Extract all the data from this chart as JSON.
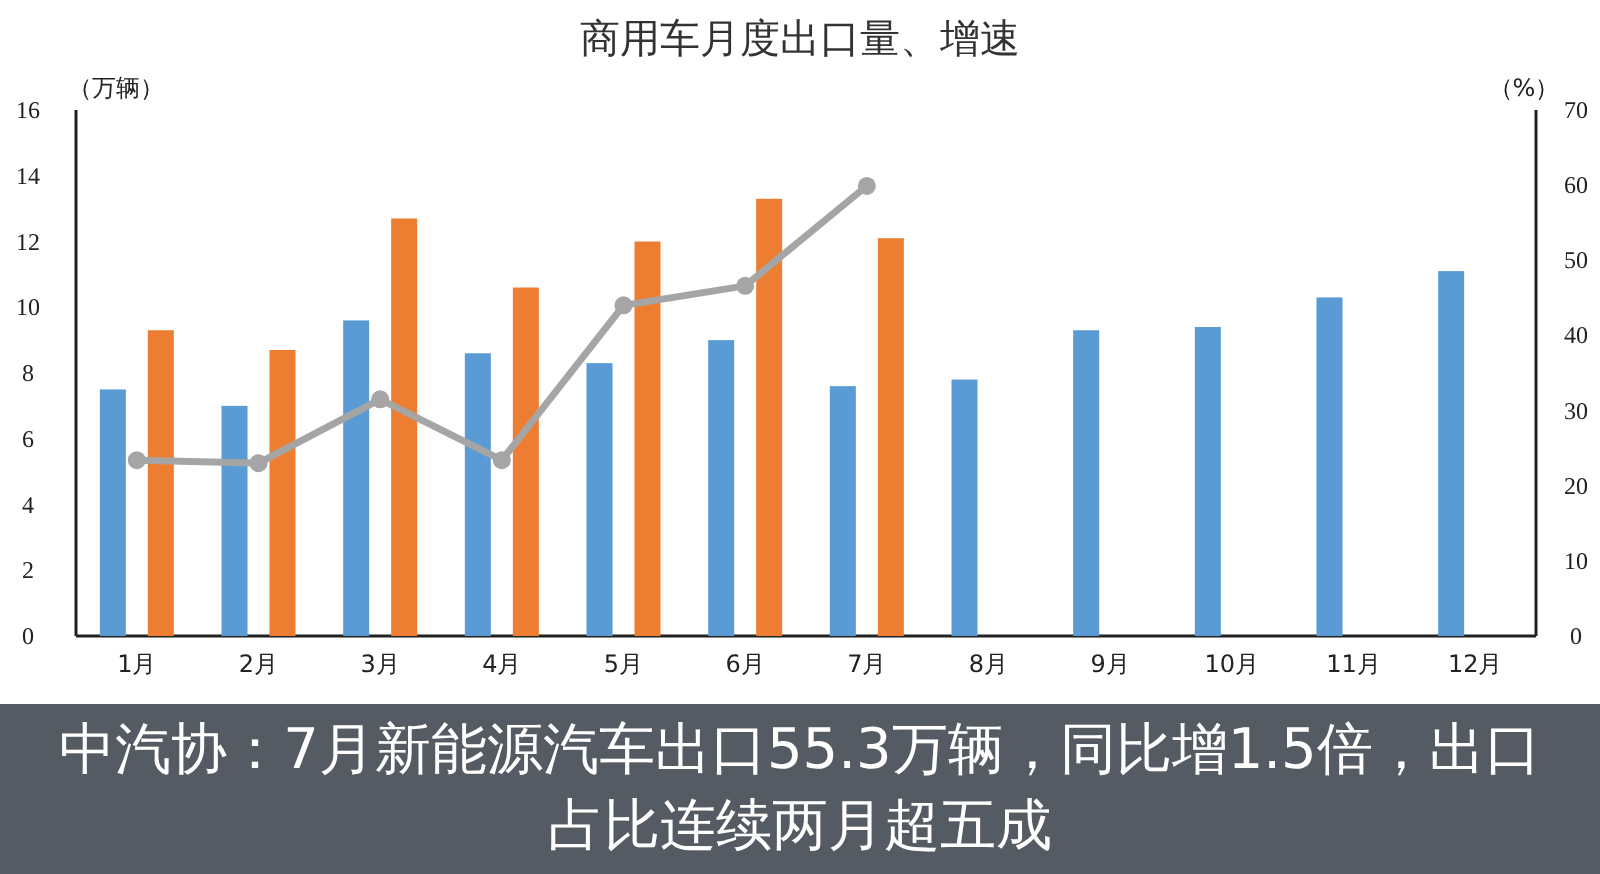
{
  "chart_data": {
    "type": "bar",
    "title": "商用车月度出口量、增速",
    "ylabel": "（万辆）",
    "y2label": "（%）",
    "categories": [
      "1月",
      "2月",
      "3月",
      "4月",
      "5月",
      "6月",
      "7月",
      "8月",
      "9月",
      "10月",
      "11月",
      "12月"
    ],
    "series": [
      {
        "color": "#5b9bd5",
        "values": [
          7.5,
          7.0,
          9.6,
          8.6,
          8.3,
          9.0,
          7.6,
          7.8,
          9.3,
          9.4,
          10.3,
          11.1
        ]
      },
      {
        "color": "#ed7d31",
        "values": [
          9.3,
          8.7,
          12.7,
          10.6,
          12.0,
          13.3,
          12.1,
          null,
          null,
          null,
          null,
          null
        ]
      },
      {
        "type": "line",
        "axis": "y2",
        "color": "#a5a5a5",
        "marker": "circle",
        "values": [
          23.4,
          23.0,
          31.5,
          23.4,
          44.0,
          46.6,
          59.9,
          null,
          null,
          null,
          null,
          null
        ]
      }
    ],
    "ylim": [
      0,
      16
    ],
    "yticks": [
      0,
      2,
      4,
      6,
      8,
      10,
      12,
      14,
      16
    ],
    "y2lim": [
      0,
      70
    ],
    "y2ticks": [
      0,
      10,
      20,
      30,
      40,
      50,
      60,
      70
    ],
    "annotations": [
      "中汽协：7月新能源汽车出口55.3万辆，同比增1.5倍，出口占比连续两月超五成"
    ]
  }
}
